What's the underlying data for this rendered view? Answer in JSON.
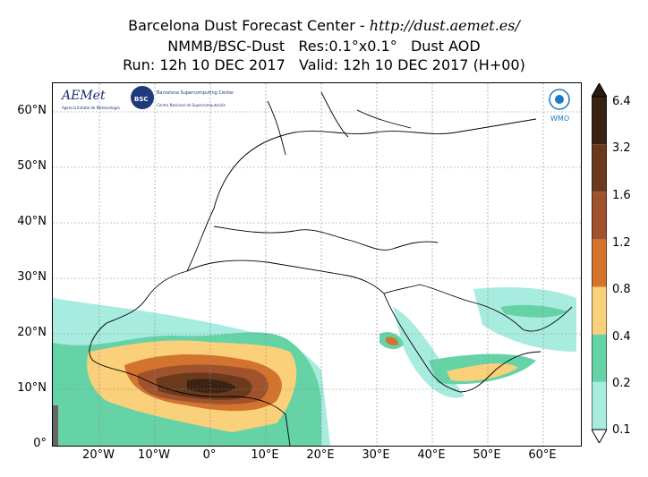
{
  "header": {
    "line1_prefix": "Barcelona Dust Forecast Center - ",
    "line1_url": "http://dust.aemet.es/",
    "line2": "NMMB/BSC-Dust   Res:0.1°x0.1°   Dust AOD",
    "line3": "Run: 12h 10 DEC 2017   Valid: 12h 10 DEC 2017 (H+00)"
  },
  "logos": {
    "aemet": "AEMet",
    "aemet_sub": "Agencia Estatal de Meteorología",
    "bsc": "BSC",
    "bsc_name": "Barcelona Supercomputing Center",
    "bsc_sub": "Centro Nacional de Supercomputación",
    "wmo": "WMO"
  },
  "axes": {
    "lat_labels": [
      "60°N",
      "50°N",
      "40°N",
      "30°N",
      "20°N",
      "10°N",
      "0°"
    ],
    "lon_labels": [
      "20°W",
      "10°W",
      "0°",
      "10°E",
      "20°E",
      "30°E",
      "40°E",
      "50°E",
      "60°E"
    ]
  },
  "colorbar": {
    "labels": [
      "6.4",
      "3.2",
      "1.6",
      "1.2",
      "0.8",
      "0.4",
      "0.2",
      "0.1"
    ],
    "colors": [
      "#3b2314",
      "#6b3a1c",
      "#a0522d",
      "#d2732e",
      "#fbd07a",
      "#66d3a6",
      "#a8ece0"
    ]
  }
}
